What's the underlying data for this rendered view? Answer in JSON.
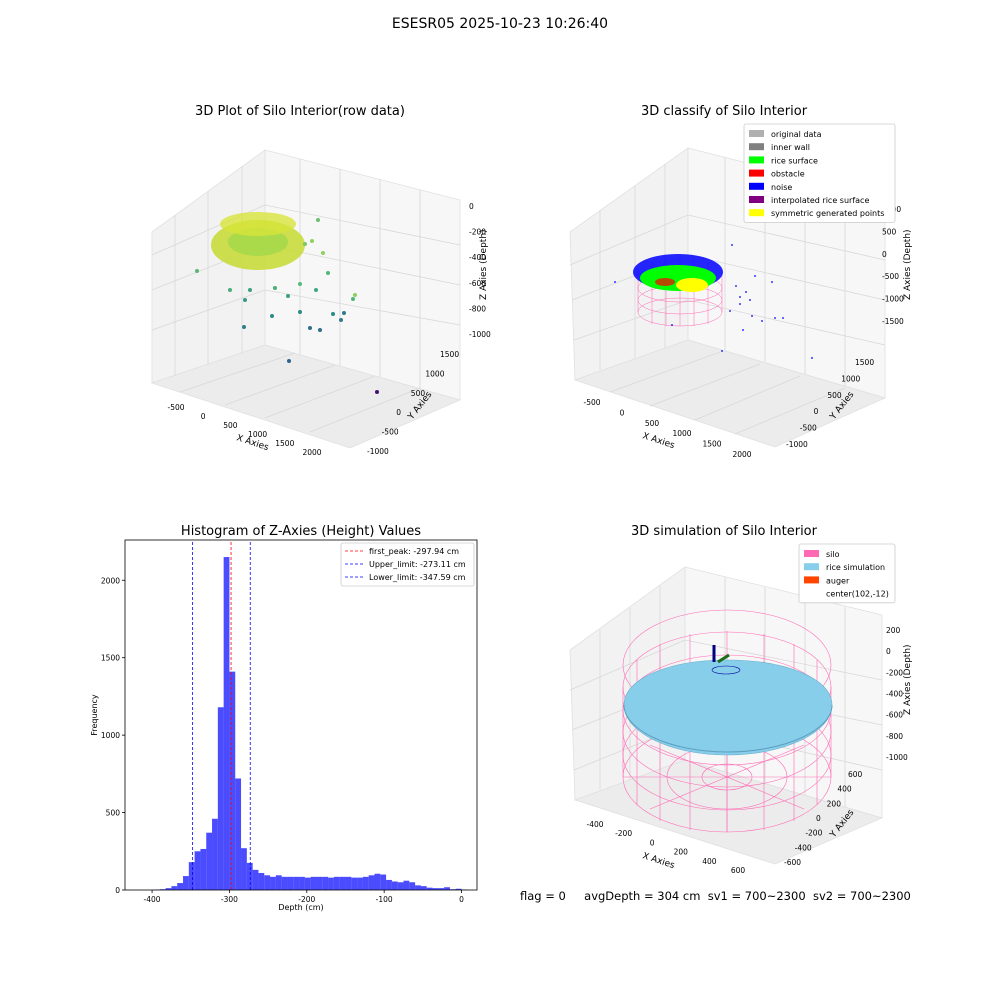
{
  "suptitle": "ESESR05 2025-10-23 10:26:40",
  "panels": {
    "raw": {
      "title": "3D Plot of Silo Interior(row data)",
      "xlabel": "X Axies",
      "ylabel": "Y Axies",
      "zlabel": "Z Axies (Depth)",
      "xticks": [
        "-500",
        "0",
        "500",
        "1000",
        "1500",
        "2000"
      ],
      "yticks": [
        "-1000",
        "-500",
        "0",
        "500",
        "1000",
        "1500"
      ],
      "zticks": [
        "0",
        "-200",
        "-400",
        "-600",
        "-800",
        "-1000"
      ]
    },
    "classify": {
      "title": "3D classify of Silo Interior",
      "xlabel": "X Axies",
      "ylabel": "Y Axies",
      "zlabel": "Z Axies (Depth)",
      "xticks": [
        "-500",
        "0",
        "500",
        "1000",
        "1500",
        "2000"
      ],
      "yticks": [
        "-1000",
        "-500",
        "0",
        "500",
        "1000",
        "1500"
      ],
      "zticks": [
        "1000",
        "500",
        "0",
        "-500",
        "-1000",
        "-1500"
      ],
      "legend": [
        {
          "label": "original data",
          "color": "#b0b0b0"
        },
        {
          "label": "inner wall",
          "color": "#808080"
        },
        {
          "label": "rice surface",
          "color": "#00ff00"
        },
        {
          "label": "obstacle",
          "color": "#ff0000"
        },
        {
          "label": "noise",
          "color": "#0000ff"
        },
        {
          "label": "interpolated rice surface",
          "color": "#800080"
        },
        {
          "label": "symmetric generated points",
          "color": "#ffff00"
        }
      ]
    },
    "simulation": {
      "title": "3D simulation of Silo Interior",
      "xlabel": "X Axies",
      "ylabel": "Y Axies",
      "zlabel": "Z Axies (Depth)",
      "xticks": [
        "-400",
        "-200",
        "0",
        "200",
        "400",
        "600"
      ],
      "yticks": [
        "-600",
        "-400",
        "-200",
        "0",
        "200",
        "400",
        "600"
      ],
      "zticks": [
        "200",
        "0",
        "-200",
        "-400",
        "-600",
        "-800",
        "-1000"
      ],
      "legend": [
        {
          "label": "silo",
          "color": "#ff69b4"
        },
        {
          "label": "rice simulation",
          "color": "#87ceeb"
        },
        {
          "label": "auger",
          "color": "#ff4500"
        },
        {
          "label": "center(102,-12)",
          "color": ""
        }
      ]
    }
  },
  "chart_data": {
    "type": "bar",
    "title": "Histogram of Z-Axies (Height) Values",
    "xlabel": "Depth (cm)",
    "ylabel": "Frequency",
    "xlim": [
      -435,
      20
    ],
    "ylim": [
      0,
      2260
    ],
    "xticks": [
      -400,
      -300,
      -200,
      -100,
      0
    ],
    "yticks": [
      0,
      500,
      1000,
      1500,
      2000
    ],
    "bin_width": 7.5,
    "bin_start": -397.5,
    "values": [
      3,
      5,
      12,
      25,
      45,
      90,
      180,
      250,
      265,
      370,
      460,
      1180,
      2150,
      1410,
      720,
      270,
      175,
      130,
      110,
      95,
      85,
      95,
      85,
      85,
      85,
      85,
      80,
      85,
      85,
      85,
      80,
      85,
      85,
      85,
      80,
      80,
      85,
      95,
      105,
      100,
      65,
      55,
      50,
      60,
      50,
      30,
      25,
      15,
      12,
      12,
      18,
      5,
      8,
      3
    ],
    "color": "#0000ff",
    "lines": [
      {
        "label": "first_peak: -297.94 cm",
        "value": -297.94,
        "color": "#ff0000"
      },
      {
        "label": "Upper_limit: -273.11 cm",
        "value": -273.11,
        "color": "#0000ff"
      },
      {
        "label": "Lower_limit: -347.59 cm",
        "value": -347.59,
        "color": "#0000ff"
      }
    ]
  },
  "status": {
    "flag": "flag = 0",
    "avg": "avgDepth = 304 cm",
    "sv1": "sv1 = 700~2300",
    "sv2": "sv2 = 700~2300"
  }
}
